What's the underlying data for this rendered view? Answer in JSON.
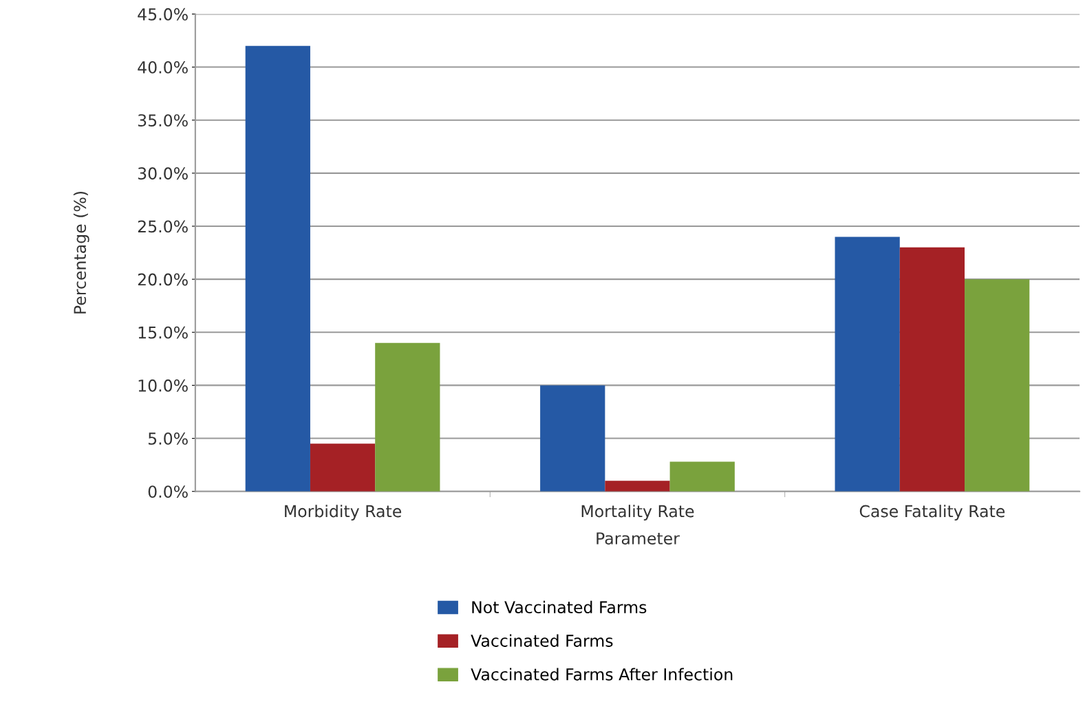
{
  "chart_data": {
    "type": "bar",
    "xlabel": "Parameter",
    "ylabel": "Percentage (%)",
    "categories": [
      "Morbidity Rate",
      "Mortality Rate",
      "Case Fatality Rate"
    ],
    "series": [
      {
        "name": "Not Vaccinated Farms",
        "color": "#2559a5",
        "values": [
          42,
          10,
          24
        ]
      },
      {
        "name": "Vaccinated Farms",
        "color": "#a52125",
        "values": [
          4.5,
          1,
          23
        ]
      },
      {
        "name": "Vaccinated Farms After Infection",
        "color": "#7aa23d",
        "values": [
          14,
          2.8,
          20
        ]
      }
    ],
    "ylim": [
      0,
      45
    ],
    "yticks": [
      {
        "value": 0,
        "label": "0.0%"
      },
      {
        "value": 5,
        "label": "5.0%"
      },
      {
        "value": 10,
        "label": "10.0%"
      },
      {
        "value": 15,
        "label": "15.0%"
      },
      {
        "value": 20,
        "label": "20.0%"
      },
      {
        "value": 25,
        "label": "25.0%"
      },
      {
        "value": 30,
        "label": "30.0%"
      },
      {
        "value": 35,
        "label": "35.0%"
      },
      {
        "value": 40,
        "label": "40.0%"
      },
      {
        "value": 45,
        "label": "45.0%"
      }
    ],
    "grid": "y",
    "legend": "bottom"
  }
}
